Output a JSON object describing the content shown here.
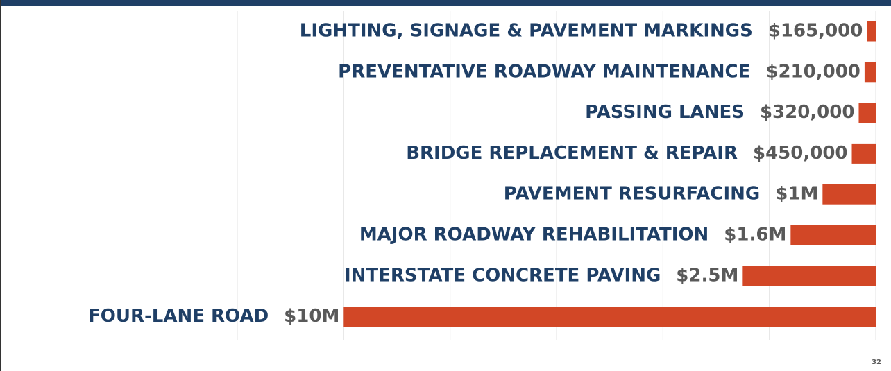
{
  "chart_data": {
    "type": "bar",
    "orientation": "horizontal",
    "categories": [
      "LIGHTING, SIGNAGE & PAVEMENT MARKINGS",
      "PREVENTATIVE ROADWAY MAINTENANCE",
      "PASSING LANES",
      "BRIDGE REPLACEMENT & REPAIR",
      "PAVEMENT RESURFACING",
      "MAJOR ROADWAY REHABILITATION",
      "INTERSTATE CONCRETE PAVING",
      "FOUR-LANE ROAD"
    ],
    "values": [
      165000,
      210000,
      320000,
      450000,
      1000000,
      1600000,
      2500000,
      10000000
    ],
    "value_labels": [
      "$165,000",
      "$210,000",
      "$320,000",
      "$450,000",
      "$1M",
      "$1.6M",
      "$2.5M",
      "$10M"
    ],
    "color": "#d24726",
    "xlim": [
      0,
      12000000
    ],
    "x_reversed": true,
    "xticks": [
      0,
      2000000,
      4000000,
      6000000,
      8000000,
      10000000,
      12000000
    ],
    "grid": true
  },
  "page_number": "32"
}
